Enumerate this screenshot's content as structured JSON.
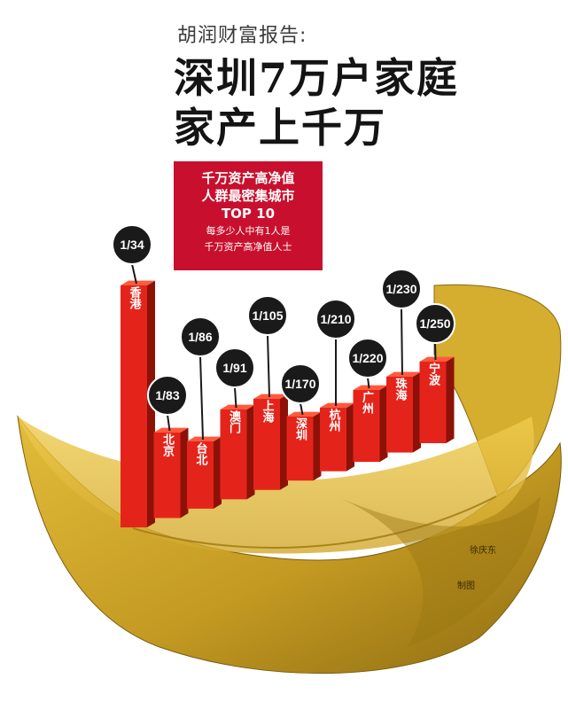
{
  "header": {
    "kicker": "胡润财富报告:",
    "headline_line1": "深圳7万户家庭",
    "headline_line2": "家产上千万"
  },
  "redbox": {
    "line1": "千万资产高净值",
    "line2": "人群最密集城市",
    "line3": "TOP 10",
    "line4": "每多少人中有1人是",
    "line5": "千万资产高净值人士"
  },
  "chart_data": {
    "type": "bar",
    "categories": [
      "香港",
      "北京",
      "台北",
      "澳门",
      "上海",
      "深圳",
      "杭州",
      "广州",
      "珠海",
      "宁波"
    ],
    "values": [
      "1/34",
      "1/83",
      "1/86",
      "1/91",
      "1/105",
      "1/170",
      "1/210",
      "1/220",
      "1/230",
      "1/250"
    ],
    "denominators": [
      34,
      83,
      86,
      91,
      105,
      170,
      210,
      220,
      230,
      250
    ]
  },
  "colors": {
    "bar_front": "#e4241b",
    "bar_side": "#8c1208",
    "bar_top": "#ff5a3c",
    "ingot_gold": "#c9a02a",
    "ingot_dark": "#8a6a10",
    "ingot_inner": "#e8c246",
    "callout": "#1a1a1a",
    "red_box": "#c8102e"
  },
  "credits": {
    "author1": "徐庆东",
    "author2": "制图"
  }
}
